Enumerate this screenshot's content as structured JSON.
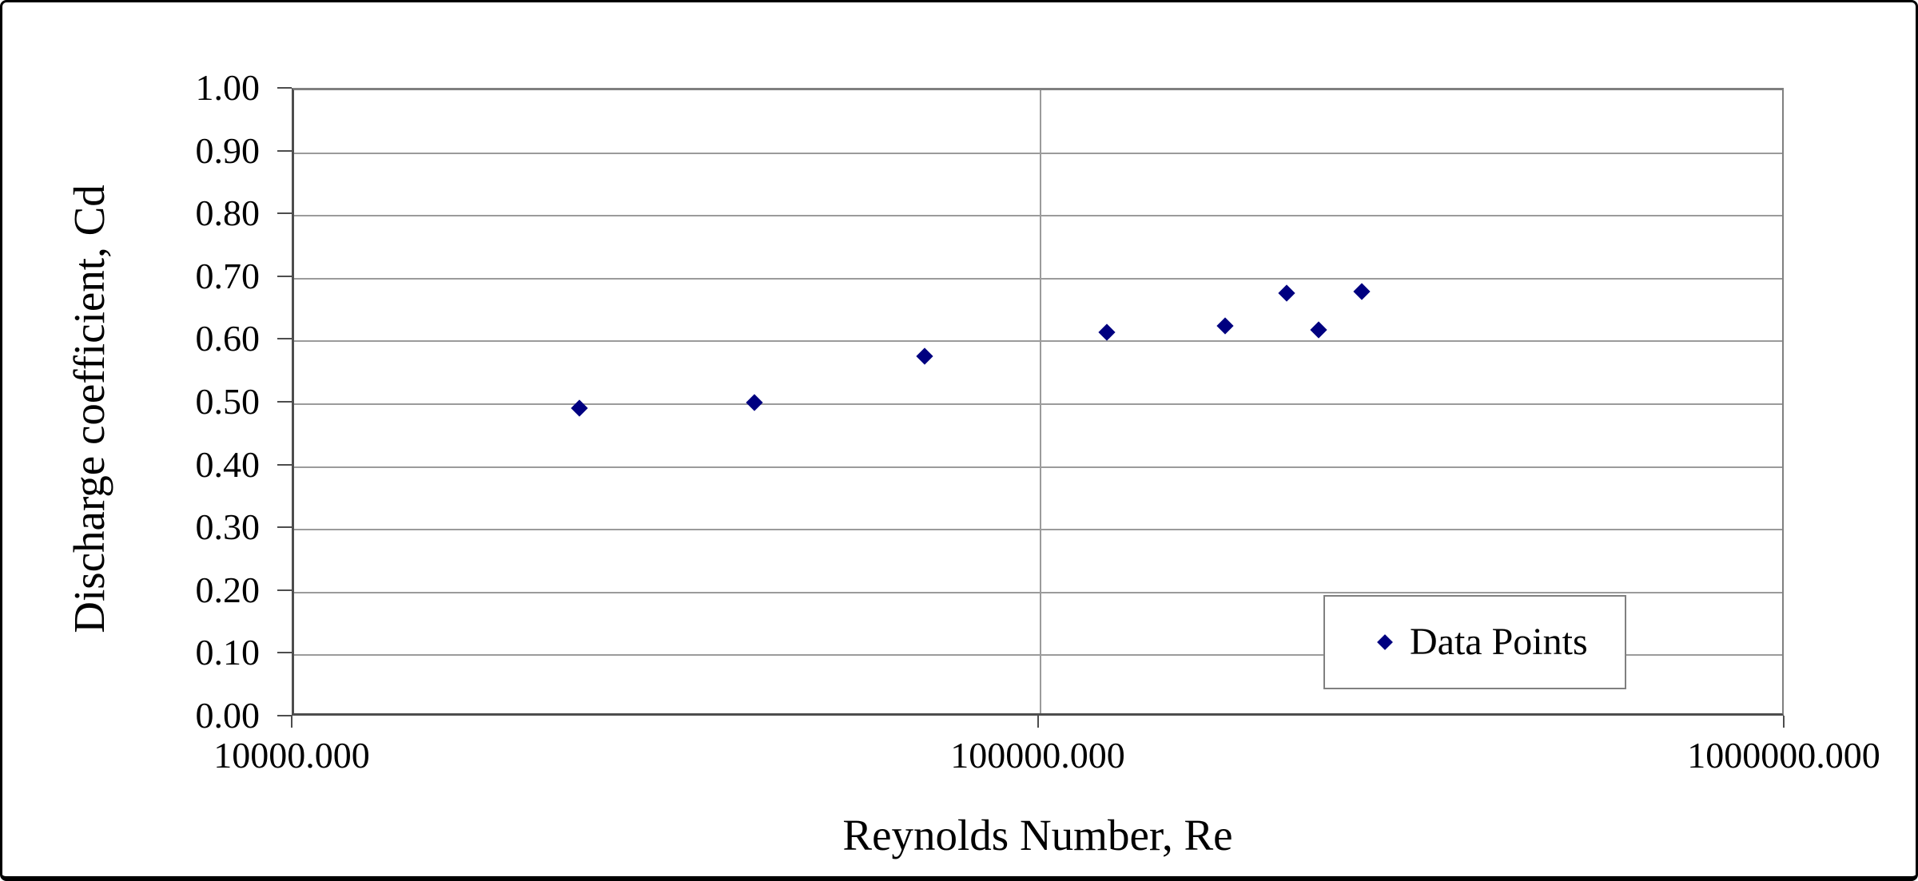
{
  "chart_data": {
    "type": "scatter",
    "xlabel": "Reynolds Number, Re",
    "ylabel": "Discharge coefficient, Cd",
    "x_scale": "log",
    "y_scale": "linear",
    "xlim": [
      10000,
      1000000
    ],
    "ylim": [
      0.0,
      1.0
    ],
    "grid": {
      "horizontal": "on",
      "vertical_at_x": [
        100000
      ]
    },
    "x_ticks": [
      {
        "value": 10000,
        "label": "10000.000"
      },
      {
        "value": 100000,
        "label": "100000.000"
      },
      {
        "value": 1000000,
        "label": "1000000.000"
      }
    ],
    "y_ticks": [
      {
        "value": 0.0,
        "label": "0.00"
      },
      {
        "value": 0.1,
        "label": "0.10"
      },
      {
        "value": 0.2,
        "label": "0.20"
      },
      {
        "value": 0.3,
        "label": "0.30"
      },
      {
        "value": 0.4,
        "label": "0.40"
      },
      {
        "value": 0.5,
        "label": "0.50"
      },
      {
        "value": 0.6,
        "label": "0.60"
      },
      {
        "value": 0.7,
        "label": "0.70"
      },
      {
        "value": 0.8,
        "label": "0.80"
      },
      {
        "value": 0.9,
        "label": "0.90"
      },
      {
        "value": 1.0,
        "label": "1.00"
      }
    ],
    "legend": {
      "label": "Data Points",
      "position": "inside-bottom-right",
      "marker": "diamond"
    },
    "series": [
      {
        "name": "Data Points",
        "marker": "diamond",
        "color": "#000080",
        "points": [
          {
            "x": 24100,
            "y": 0.494
          },
          {
            "x": 41400,
            "y": 0.503
          },
          {
            "x": 70100,
            "y": 0.576
          },
          {
            "x": 123000,
            "y": 0.614
          },
          {
            "x": 177000,
            "y": 0.625
          },
          {
            "x": 214000,
            "y": 0.677
          },
          {
            "x": 236000,
            "y": 0.618
          },
          {
            "x": 270000,
            "y": 0.68
          }
        ]
      }
    ],
    "colors": {
      "marker": "#000080",
      "gridline": "#9b9b9b",
      "axis_line": "#4d4d4d",
      "plot_border": "#808080",
      "frame": "#000000",
      "text": "#000000",
      "background": "#ffffff"
    }
  }
}
